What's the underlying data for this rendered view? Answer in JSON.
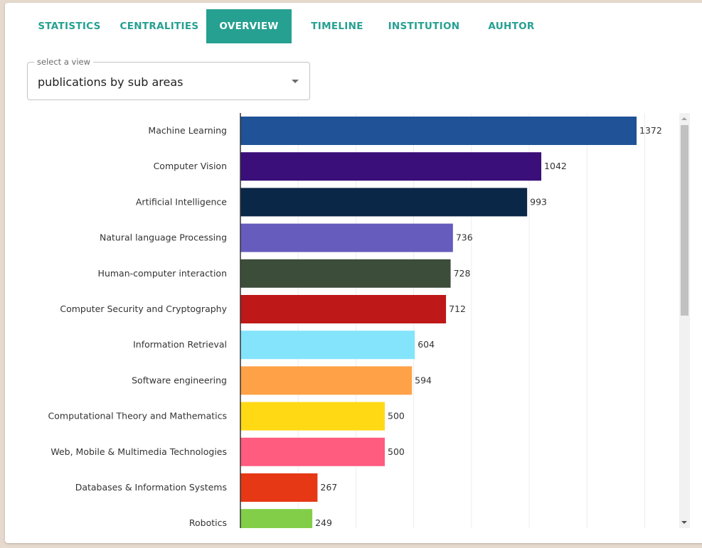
{
  "tabs": [
    {
      "label": "STATISTICS",
      "active": false
    },
    {
      "label": "CENTRALITIES",
      "active": false
    },
    {
      "label": "OVERVIEW",
      "active": true
    },
    {
      "label": "TIMELINE",
      "active": false
    },
    {
      "label": "INSTITUTION",
      "active": false
    },
    {
      "label": "AUHTOR",
      "active": false
    }
  ],
  "select": {
    "legend": "select a view",
    "value": "publications by sub areas"
  },
  "colors": {
    "accent": "#26a091",
    "bars": [
      "#1f5296",
      "#3a0f7a",
      "#0a2747",
      "#665cbe",
      "#3c4d3a",
      "#be1818",
      "#84e4fc",
      "#ffa146",
      "#ffd914",
      "#ff5c7f",
      "#e63815",
      "#82ce48"
    ]
  },
  "chart_data": {
    "type": "bar",
    "orientation": "horizontal",
    "categories": [
      "Machine Learning",
      "Computer Vision",
      "Artificial Intelligence",
      "Natural language Processing",
      "Human-computer interaction",
      "Computer Security and Cryptography",
      "Information Retrieval",
      "Software engineering",
      "Computational Theory and Mathematics",
      "Web, Mobile & Multimedia Technologies",
      "Databases & Information Systems",
      "Robotics"
    ],
    "values": [
      1372,
      1042,
      993,
      736,
      728,
      712,
      604,
      594,
      500,
      500,
      267,
      249
    ],
    "value_labels": [
      "1372",
      "1042",
      "993",
      "736",
      "728",
      "712",
      "604",
      "594",
      "500",
      "500",
      "267",
      "249"
    ],
    "xlim": [
      0,
      1400
    ],
    "grid": true
  }
}
